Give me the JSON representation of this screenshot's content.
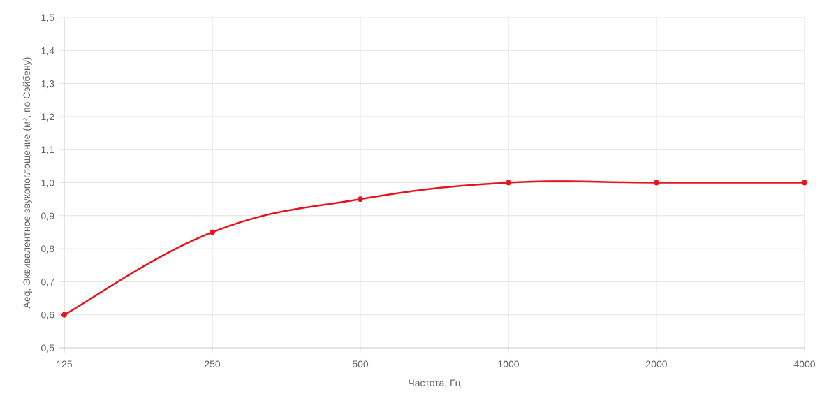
{
  "chart_data": {
    "type": "line",
    "title": "",
    "xlabel": "Частота, Гц",
    "ylabel": "Aeq, Эквивалентное звукопоглощение (м², по Сэйбену)",
    "categories": [
      "125",
      "250",
      "500",
      "1000",
      "2000",
      "4000"
    ],
    "series": [
      {
        "values": [
          0.6,
          0.85,
          0.95,
          1.0,
          1.0,
          1.0
        ],
        "color": "#e8141c"
      }
    ],
    "ylim": [
      0.5,
      1.5
    ],
    "yticks": [
      "0,5",
      "0,6",
      "0,7",
      "0,8",
      "0,9",
      "1,0",
      "1,1",
      "1,2",
      "1,3",
      "1,4",
      "1,5"
    ],
    "grid": true,
    "legend": "none"
  }
}
